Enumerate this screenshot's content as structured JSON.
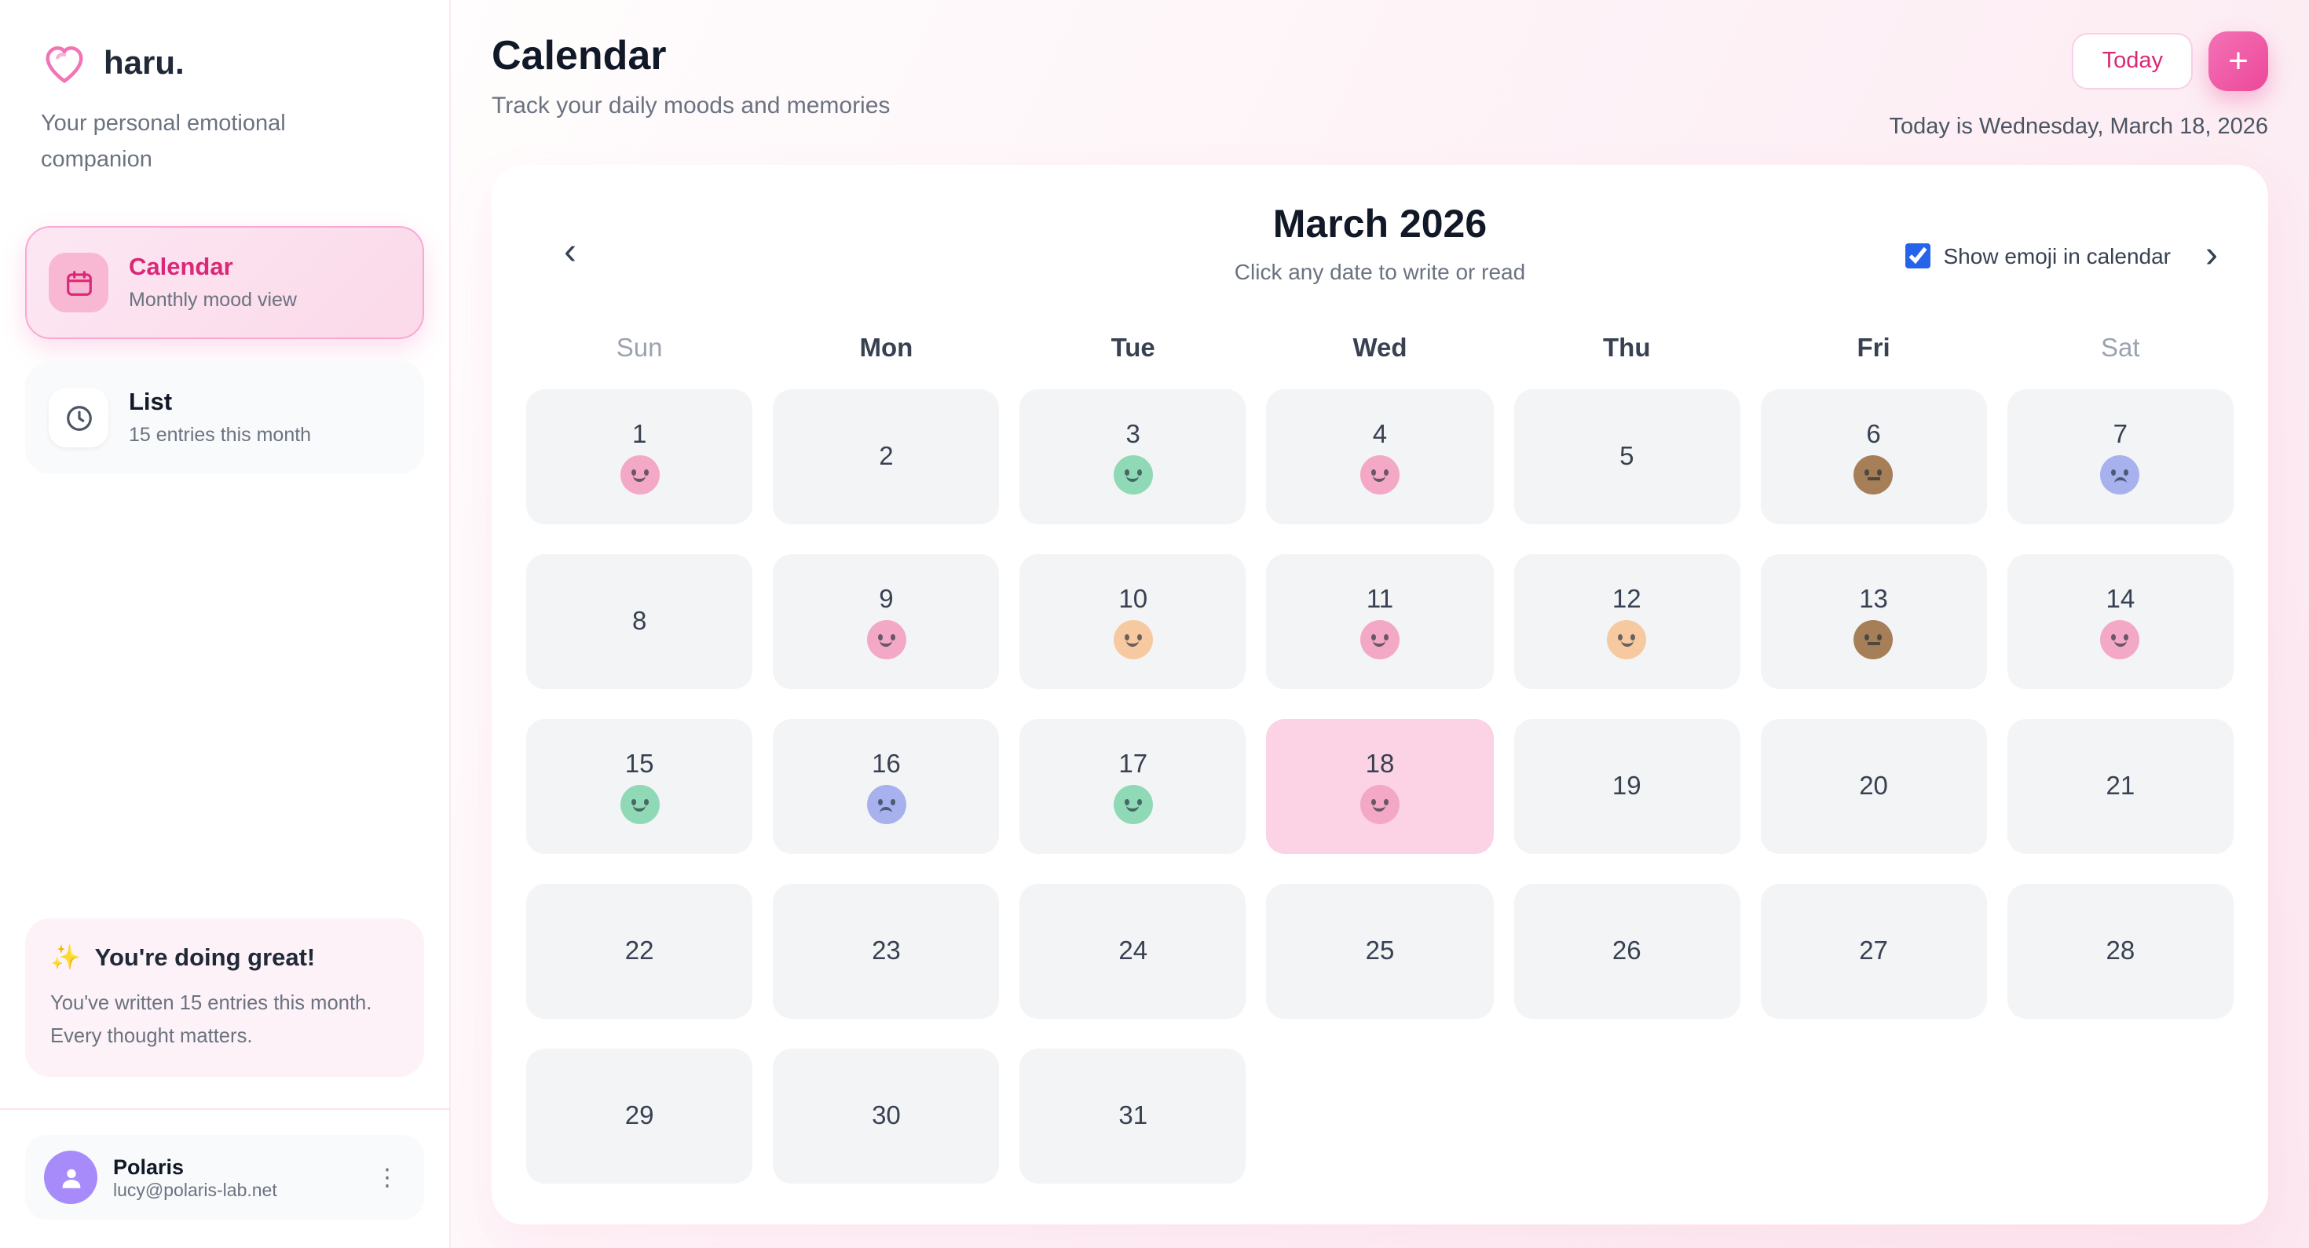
{
  "sidebar": {
    "logo_text": "haru.",
    "tagline": "Your personal emotional companion",
    "nav": [
      {
        "label": "Calendar",
        "sub": "Monthly mood view",
        "active": true
      },
      {
        "label": "List",
        "sub": "15 entries this month",
        "active": false
      }
    ],
    "encouragement": {
      "icon": "✨",
      "title": "You're doing great!",
      "body": "You've written 15 entries this month. Every thought matters."
    },
    "user": {
      "name": "Polaris",
      "email": "lucy@polaris-lab.net",
      "menu_icon": "⋮"
    }
  },
  "header": {
    "title": "Calendar",
    "subtitle": "Track your daily moods and memories",
    "today_button": "Today",
    "add_button": "+",
    "today_text": "Today is Wednesday, March 18, 2026"
  },
  "calendar": {
    "month_title": "March 2026",
    "hint": "Click any date to write or read",
    "nav_prev": "‹",
    "nav_next": "›",
    "show_emoji_label": "Show emoji in calendar",
    "show_emoji_checked": true,
    "weekdays": [
      "Sun",
      "Mon",
      "Tue",
      "Wed",
      "Thu",
      "Fri",
      "Sat"
    ],
    "weekend_indices": [
      0,
      6
    ],
    "start_offset": 0,
    "days_in_month": 31,
    "today": 18,
    "entries": {
      "1": "pink",
      "3": "green",
      "4": "pink",
      "6": "brown",
      "7": "periwinkle",
      "9": "pink",
      "10": "peach",
      "11": "pink",
      "12": "peach",
      "13": "brown",
      "14": "pink",
      "15": "green",
      "16": "periwinkle",
      "17": "green",
      "18": "pink"
    },
    "moods": {
      "pink": {
        "color": "#f3a8c5",
        "face": "happy"
      },
      "green": {
        "color": "#8fd9b6",
        "face": "happy"
      },
      "peach": {
        "color": "#f7c9a0",
        "face": "happy"
      },
      "brown": {
        "color": "#a67f58",
        "face": "neutral"
      },
      "periwinkle": {
        "color": "#a6b1ee",
        "face": "sad"
      }
    },
    "colors": {
      "accent": "#ec4899",
      "today_cell": "#fbd3e4",
      "checkbox": "#2563eb"
    }
  }
}
